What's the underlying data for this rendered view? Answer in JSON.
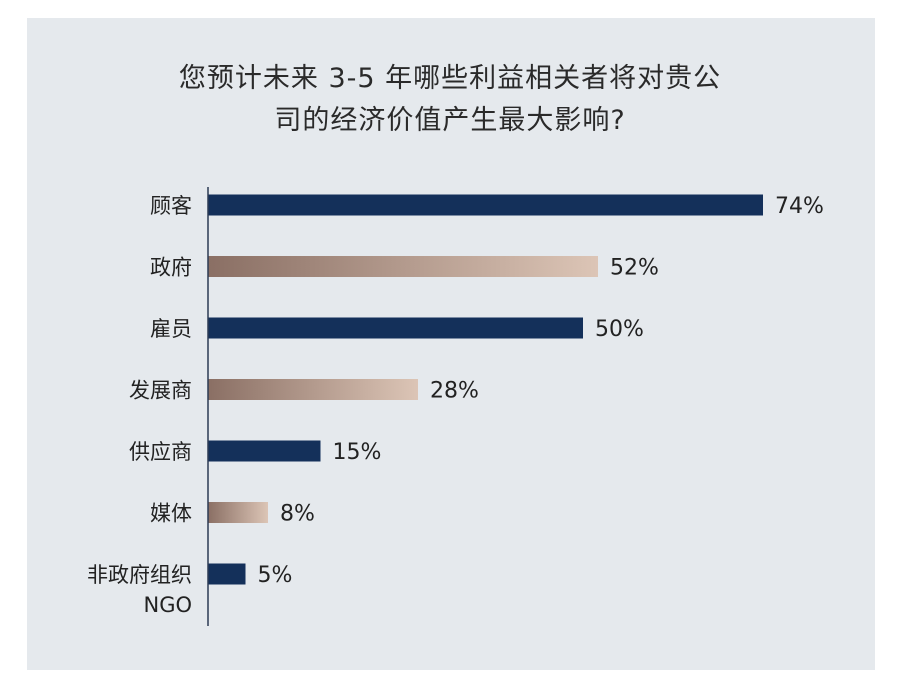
{
  "colors": {
    "panel_bg": "#e5e9ed",
    "navy": "#14305a",
    "bronze_start": "#8a6f64",
    "bronze_end": "#dcc5b6",
    "axis": "#2d3b55"
  },
  "chart_data": {
    "type": "bar",
    "orientation": "horizontal",
    "title_lines": [
      "您预计未来 3-5 年哪些利益相关者将对贵公",
      "司的经济价值产生最大影响?"
    ],
    "categories": [
      [
        "顾客"
      ],
      [
        "政府"
      ],
      [
        "雇员"
      ],
      [
        "发展商"
      ],
      [
        "供应商"
      ],
      [
        "媒体"
      ],
      [
        "非政府组织",
        "NGO"
      ]
    ],
    "values": [
      74,
      52,
      50,
      28,
      15,
      8,
      5
    ],
    "value_labels": [
      "74%",
      "52%",
      "50%",
      "28%",
      "15%",
      "8%",
      "5%"
    ],
    "bar_styles": [
      "navy",
      "bronze",
      "navy",
      "bronze",
      "navy",
      "bronze",
      "navy"
    ],
    "xlim": [
      0,
      100
    ],
    "unit": "%",
    "grid": false,
    "legend": "none"
  }
}
